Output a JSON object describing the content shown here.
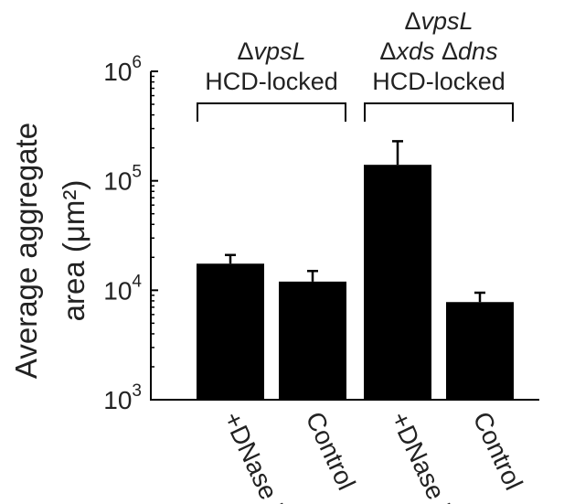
{
  "chart_data": {
    "type": "bar",
    "ylabel": "Average aggregate area (μm²)",
    "ylabel_lines": [
      "Average aggregate",
      "area (μm²)"
    ],
    "yscale": "log",
    "ylim": [
      1000,
      1000000
    ],
    "yticks": [
      {
        "value": 1000,
        "base": "10",
        "exp": "3"
      },
      {
        "value": 10000,
        "base": "10",
        "exp": "4"
      },
      {
        "value": 100000,
        "base": "10",
        "exp": "5"
      },
      {
        "value": 1000000,
        "base": "10",
        "exp": "6"
      }
    ],
    "categories": [
      "+DNase I",
      "Control",
      "+DNase I",
      "Control"
    ],
    "values": [
      17500,
      12000,
      140000,
      7800
    ],
    "error_upper": [
      21000,
      15000,
      230000,
      9500
    ],
    "bar_color": "#000000",
    "groups": [
      {
        "lines": [
          [
            {
              "text": "Δ",
              "italic": false
            },
            {
              "text": "vpsL",
              "italic": true
            }
          ],
          [
            {
              "text": "HCD-locked",
              "italic": false
            }
          ]
        ],
        "bars": [
          0,
          1
        ]
      },
      {
        "lines": [
          [
            {
              "text": "Δ",
              "italic": false
            },
            {
              "text": "vpsL",
              "italic": true
            }
          ],
          [
            {
              "text": "Δ",
              "italic": false
            },
            {
              "text": "xds",
              "italic": true
            },
            {
              "text": " Δ",
              "italic": false
            },
            {
              "text": "dns",
              "italic": true
            }
          ],
          [
            {
              "text": "HCD-locked",
              "italic": false
            }
          ]
        ],
        "bars": [
          2,
          3
        ]
      }
    ]
  }
}
